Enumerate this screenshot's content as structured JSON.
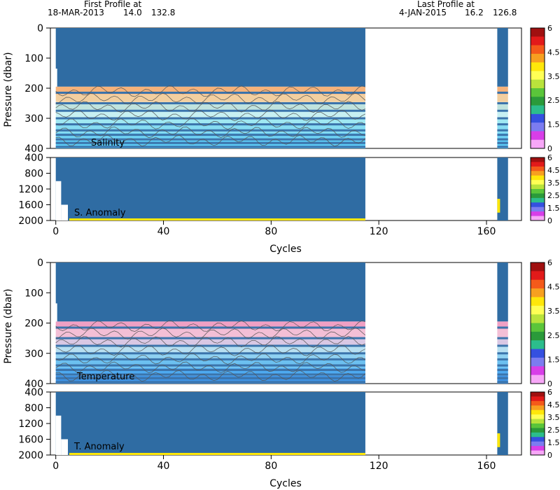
{
  "header": {
    "first_label": "First Profile at",
    "first_date": "18-MAR-2013",
    "first_lat": "14.0",
    "first_lon": "132.8",
    "last_label": "Last Profile at",
    "last_date": "4-JAN-2015",
    "last_lat": "16.2",
    "last_lon": "126.8"
  },
  "colors": {
    "fill_blue": "#2f6ca3",
    "data_blue": "#3b74ac",
    "contour": "#555555"
  },
  "chart_data": [
    {
      "type": "heatmap",
      "panel": "salinity-upper",
      "label": "Salinity",
      "ylabel": "Pressure (dbar)",
      "ylim": [
        400,
        0
      ],
      "yticks": [
        "0",
        "100",
        "200",
        "300",
        "400"
      ],
      "xlim": [
        -2,
        173
      ],
      "profile_spans": [
        [
          0,
          115
        ],
        [
          164,
          168
        ]
      ],
      "colorbar_ticks": [
        "6",
        "4.5",
        "3.5",
        "2.5",
        "1.5",
        "0"
      ],
      "band_colors": [
        "#f5b27a",
        "#f2cfa0",
        "#bfe3de",
        "#c7f0f2",
        "#9fe8f2",
        "#86dcf2",
        "#6fd2f4",
        "#5ccaf5"
      ]
    },
    {
      "type": "heatmap",
      "panel": "salinity-anomaly",
      "label": "S. Anomaly",
      "ylim": [
        2000,
        400
      ],
      "yticks": [
        "400",
        "800",
        "1200",
        "1600",
        "2000"
      ],
      "xlim": [
        -2,
        173
      ],
      "colorbar_ticks": [
        "6",
        "4.5",
        "3.5",
        "2.5",
        "1.5",
        "0"
      ]
    },
    {
      "type": "heatmap",
      "panel": "temperature-upper",
      "label": "Temperature",
      "ylabel": "Pressure (dbar)",
      "ylim": [
        400,
        0
      ],
      "yticks": [
        "0",
        "100",
        "200",
        "300",
        "400"
      ],
      "xlim": [
        -2,
        173
      ],
      "colorbar_ticks": [
        "6",
        "4.5",
        "3.5",
        "2.5",
        "1.5",
        "0"
      ],
      "band_colors": [
        "#f0a0c4",
        "#f3bfd6",
        "#d9c8e4",
        "#b7dff1",
        "#8fd1f2",
        "#6cc0f0",
        "#4eaaf0",
        "#3f93e4"
      ]
    },
    {
      "type": "heatmap",
      "panel": "temperature-anomaly",
      "label": "T. Anomaly",
      "ylim": [
        2000,
        400
      ],
      "yticks": [
        "400",
        "800",
        "1200",
        "1600",
        "2000"
      ],
      "xlim": [
        -2,
        173
      ],
      "xlabel": "Cycles",
      "xticks": [
        "0",
        "40",
        "80",
        "120",
        "160"
      ],
      "colorbar_ticks": [
        "6",
        "4.5",
        "3.5",
        "2.5",
        "1.5",
        "0"
      ]
    }
  ],
  "colorbar_colors": [
    "#a01010",
    "#e21a1a",
    "#f45a1a",
    "#f7a020",
    "#ffe70a",
    "#ffff55",
    "#b9e33c",
    "#5ac53a",
    "#2a9a3a",
    "#2cbd8c",
    "#3550e0",
    "#7c7cf0",
    "#d83ee8",
    "#f7a7f7"
  ],
  "axis": {
    "xlabel": "Cycles",
    "xticks": [
      "0",
      "40",
      "80",
      "120",
      "160"
    ]
  }
}
